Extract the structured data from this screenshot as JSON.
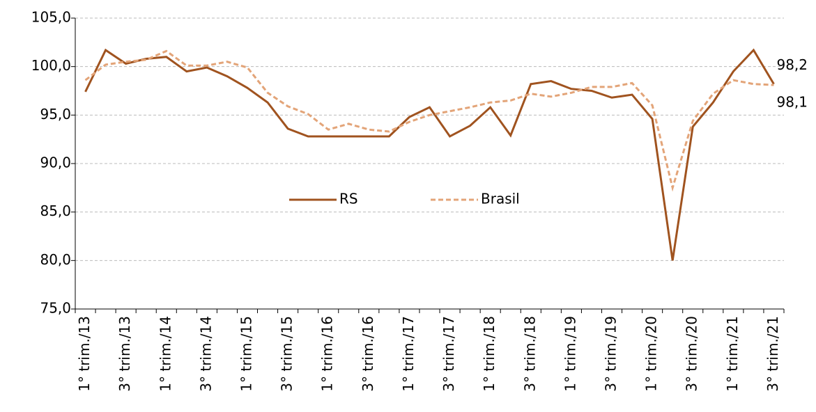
{
  "chart_data": {
    "type": "line",
    "categories": [
      "1° trim./13",
      null,
      "3° trim./13",
      null,
      "1° trim./14",
      null,
      "3° trim./14",
      null,
      "1° trim./15",
      null,
      "3° trim./15",
      null,
      "1° trim./16",
      null,
      "3° trim./16",
      null,
      "1° trim./17",
      null,
      "3° trim./17",
      null,
      "1° trim./18",
      null,
      "3° trim./18",
      null,
      "1° trim./19",
      null,
      "3° trim./19",
      null,
      "1° trim./20",
      null,
      "3° trim./20",
      null,
      "1° trim./21",
      null,
      "3° trim./21"
    ],
    "series": [
      {
        "name": "RS",
        "color": "#a0531f",
        "dashed": false,
        "values": [
          97.4,
          101.7,
          100.3,
          100.8,
          101.0,
          99.5,
          99.9,
          99.0,
          97.8,
          96.3,
          93.6,
          92.8,
          92.8,
          92.8,
          92.8,
          92.8,
          94.8,
          95.8,
          92.8,
          93.9,
          95.8,
          92.9,
          98.2,
          98.5,
          97.7,
          97.5,
          96.8,
          97.1,
          94.6,
          80.0,
          93.8,
          96.3,
          99.5,
          101.7,
          98.2
        ],
        "value_labels": [
          null,
          null,
          null,
          null,
          null,
          null,
          null,
          null,
          null,
          null,
          null,
          null,
          null,
          null,
          null,
          null,
          null,
          null,
          null,
          null,
          null,
          null,
          null,
          null,
          null,
          null,
          null,
          null,
          null,
          null,
          null,
          null,
          null,
          null,
          "98,2"
        ]
      },
      {
        "name": "Brasil",
        "color": "#e3a478",
        "dashed": true,
        "values": [
          98.6,
          100.2,
          100.5,
          100.7,
          101.6,
          100.1,
          100.1,
          100.5,
          99.9,
          97.3,
          95.9,
          95.1,
          93.5,
          94.1,
          93.5,
          93.3,
          94.3,
          95.0,
          95.4,
          95.8,
          96.3,
          96.5,
          97.2,
          96.9,
          97.3,
          97.9,
          97.9,
          98.3,
          96.0,
          87.5,
          94.4,
          97.2,
          98.6,
          98.2,
          98.1
        ],
        "value_labels": [
          null,
          null,
          null,
          null,
          null,
          null,
          null,
          null,
          null,
          null,
          null,
          null,
          null,
          null,
          null,
          null,
          null,
          null,
          null,
          null,
          null,
          null,
          null,
          null,
          null,
          null,
          null,
          null,
          null,
          null,
          null,
          null,
          null,
          null,
          "98,1"
        ]
      }
    ],
    "ylim": [
      75,
      105
    ],
    "yticks": [
      {
        "value": 75,
        "label": "75,0"
      },
      {
        "value": 80,
        "label": "80,0"
      },
      {
        "value": 85,
        "label": "85,0"
      },
      {
        "value": 90,
        "label": "90,0"
      },
      {
        "value": 95,
        "label": "95,0"
      },
      {
        "value": 100,
        "label": "100,0"
      },
      {
        "value": 105,
        "label": "105,0"
      }
    ],
    "grid": true,
    "legend": "center"
  }
}
